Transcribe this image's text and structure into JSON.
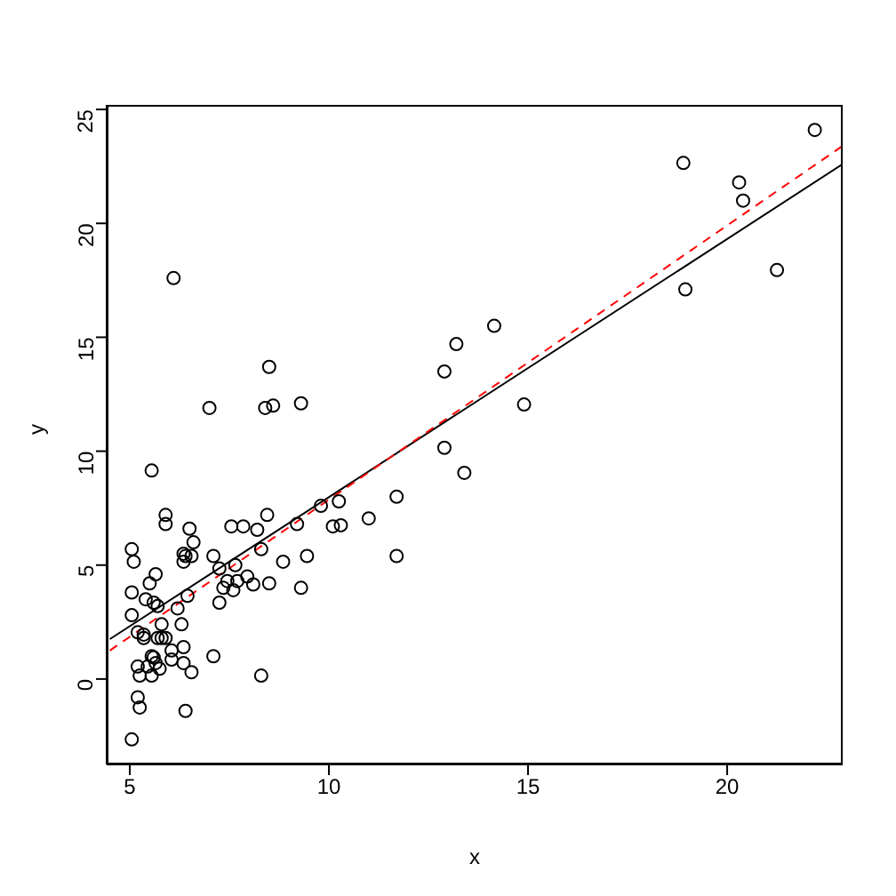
{
  "chart_data": {
    "type": "scatter",
    "xlabel": "x",
    "ylabel": "y",
    "xlim": [
      4.42,
      22.9
    ],
    "ylim": [
      -3.75,
      25.2
    ],
    "xticks": [
      5,
      10,
      15,
      20
    ],
    "yticks": [
      0,
      5,
      10,
      15,
      20,
      25
    ],
    "marker": "circle",
    "series": [
      {
        "type": "scatter",
        "color": "#000000",
        "x": [
          22.2,
          18.9,
          20.3,
          20.4,
          18.95,
          21.25,
          14.15,
          13.2,
          12.9,
          14.9,
          12.9,
          13.4,
          11.7,
          11.7,
          11.0,
          6.1,
          8.5,
          7.0,
          8.4,
          8.6,
          9.3,
          5.55,
          5.9,
          5.9,
          6.5,
          7.55,
          7.85,
          8.45,
          8.2,
          9.2,
          9.8,
          10.25,
          10.1,
          10.3,
          5.05,
          5.1,
          6.6,
          6.35,
          6.4,
          6.35,
          6.55,
          7.1,
          7.65,
          7.25,
          8.3,
          8.85,
          9.45,
          7.95,
          7.45,
          7.7,
          7.35,
          7.6,
          8.1,
          8.5,
          9.3,
          7.25,
          5.05,
          5.65,
          5.5,
          5.4,
          5.6,
          5.7,
          6.2,
          6.45,
          5.05,
          5.8,
          6.3,
          5.2,
          5.35,
          5.35,
          5.7,
          5.8,
          5.9,
          6.05,
          6.35,
          5.55,
          5.6,
          6.05,
          7.1,
          5.2,
          5.45,
          5.65,
          5.75,
          5.25,
          5.55,
          6.35,
          6.55,
          8.3,
          5.2,
          5.25,
          6.4,
          5.05
        ],
        "values": [
          24.1,
          22.65,
          21.8,
          21.0,
          17.1,
          17.95,
          15.5,
          14.7,
          13.5,
          12.05,
          10.15,
          9.05,
          8.0,
          5.4,
          7.05,
          17.6,
          13.7,
          11.9,
          11.9,
          12.0,
          12.1,
          9.15,
          7.2,
          6.8,
          6.6,
          6.7,
          6.7,
          7.2,
          6.55,
          6.8,
          7.6,
          7.8,
          6.7,
          6.75,
          5.7,
          5.15,
          6.0,
          5.5,
          5.4,
          5.15,
          5.4,
          5.4,
          5.0,
          4.85,
          5.7,
          5.15,
          5.4,
          4.5,
          4.3,
          4.3,
          4.0,
          3.9,
          4.15,
          4.2,
          4.0,
          3.35,
          3.8,
          4.6,
          4.2,
          3.5,
          3.35,
          3.2,
          3.1,
          3.65,
          2.8,
          2.4,
          2.4,
          2.05,
          1.95,
          1.8,
          1.8,
          1.8,
          1.8,
          1.25,
          1.4,
          1.0,
          0.95,
          0.85,
          1.0,
          0.55,
          0.55,
          0.7,
          0.45,
          0.15,
          0.15,
          0.7,
          0.3,
          0.15,
          -0.8,
          -1.25,
          -1.4,
          -2.65
        ]
      },
      {
        "type": "line",
        "color": "#000000",
        "line_style": "solid",
        "marker": "none",
        "x": [
          4.5,
          22.9
        ],
        "values": [
          1.75,
          22.6
        ]
      },
      {
        "type": "line",
        "color": "#ff0000",
        "line_style": "dashed",
        "marker": "none",
        "x": [
          4.5,
          22.9
        ],
        "values": [
          1.25,
          23.4
        ]
      }
    ]
  }
}
